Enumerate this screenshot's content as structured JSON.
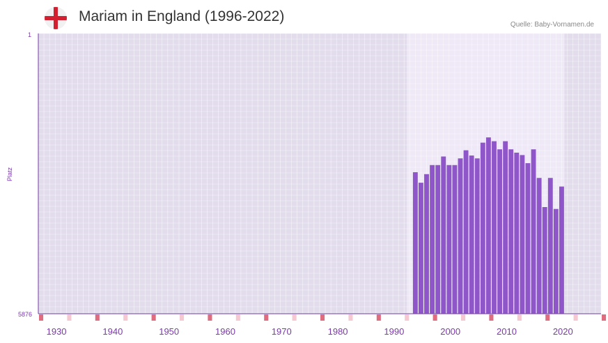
{
  "header": {
    "title": "Mariam in England (1996-2022)",
    "source": "Quelle: Baby-Vornamen.de",
    "flag_icon": "england-flag-icon"
  },
  "chart_data": {
    "type": "bar",
    "title": "Mariam in England (1996-2022)",
    "ylabel": "Platz",
    "xlabel": "",
    "y_axis_inverted": true,
    "ylim": [
      1,
      5876
    ],
    "y_tick_labels": [
      "1",
      "5876"
    ],
    "xlim": [
      1929,
      2029
    ],
    "x_tick_labels": [
      "1930",
      "1940",
      "1950",
      "1960",
      "1970",
      "1980",
      "1990",
      "2000",
      "2010",
      "2020"
    ],
    "highlight_range": [
      1995,
      2022
    ],
    "series": [
      {
        "name": "Mariam",
        "color": "#8e56c8",
        "x": [
          1996,
          1997,
          1998,
          1999,
          2000,
          2001,
          2002,
          2003,
          2004,
          2005,
          2006,
          2007,
          2008,
          2009,
          2010,
          2011,
          2012,
          2013,
          2014,
          2015,
          2016,
          2017,
          2018,
          2019,
          2020,
          2021,
          2022
        ],
        "values": [
          2910,
          3130,
          2950,
          2760,
          2760,
          2580,
          2760,
          2760,
          2620,
          2450,
          2560,
          2620,
          2290,
          2180,
          2260,
          2430,
          2260,
          2430,
          2500,
          2550,
          2720,
          2430,
          3030,
          3640,
          3030,
          3680,
          3210
        ]
      }
    ]
  }
}
